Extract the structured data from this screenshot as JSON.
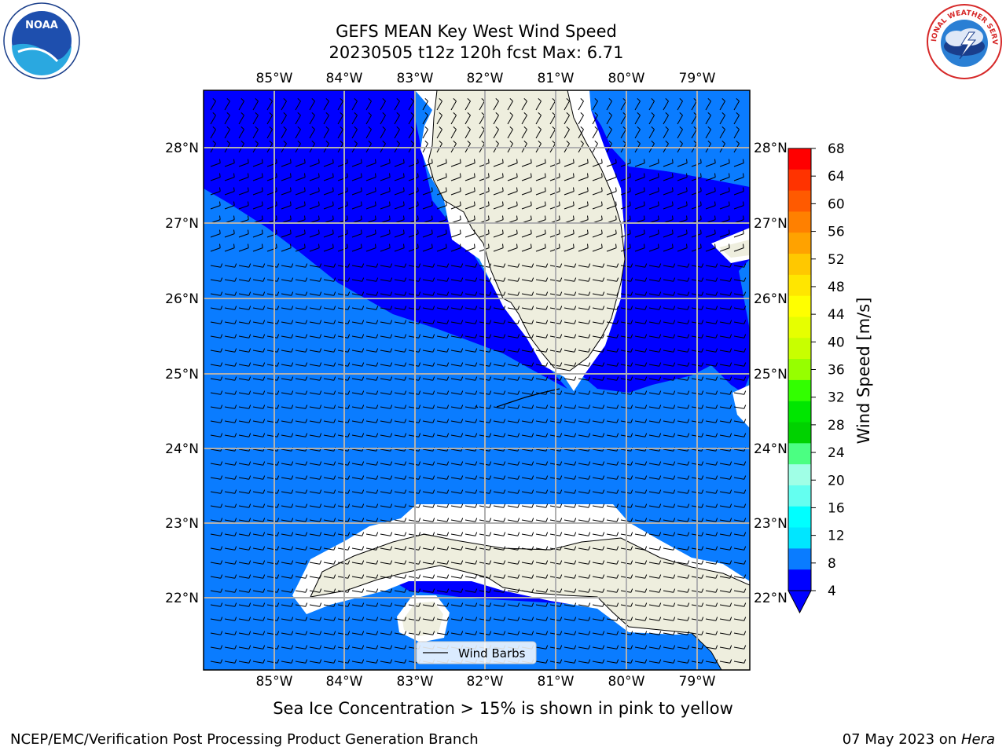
{
  "title": {
    "line1": "GEFS MEAN Key West Wind Speed",
    "line2": "20230505 t12z 120h fcst   Max: 6.71"
  },
  "map": {
    "lon_ticks": [
      "85°W",
      "84°W",
      "83°W",
      "82°W",
      "81°W",
      "80°W",
      "79°W"
    ],
    "lat_ticks": [
      "28°N",
      "27°N",
      "26°N",
      "25°N",
      "24°N",
      "23°N",
      "22°N"
    ],
    "legend_label": "Wind Barbs",
    "colors": {
      "ocean_light": "#0a7cff",
      "ocean_dark": "#0000ff",
      "land": "#eeeede",
      "grid": "#b0b0b0"
    },
    "wind_barb_direction": "westerly (barbs point east)"
  },
  "colorbar": {
    "label": "Wind Speed [m/s]",
    "ticks": [
      "68",
      "64",
      "60",
      "56",
      "52",
      "48",
      "44",
      "40",
      "36",
      "32",
      "28",
      "24",
      "20",
      "16",
      "12",
      "8",
      "4"
    ],
    "colors": [
      "#ff0000",
      "#ff3300",
      "#ff5a00",
      "#ff8000",
      "#ffa200",
      "#ffc800",
      "#ffe600",
      "#ffff00",
      "#e6ff00",
      "#c8ff00",
      "#96ff00",
      "#32ff00",
      "#00e600",
      "#00d200",
      "#4bff82",
      "#a0ffe6",
      "#64fff0",
      "#00ffff",
      "#00e6ff",
      "#0a7cff",
      "#0000ff"
    ]
  },
  "caption": "Sea Ice Concentration > 15% is shown in pink to yellow",
  "footer": {
    "left": "NCEP/EMC/Verification Post Processing Product Generation Branch",
    "date": "07 May 2023 on ",
    "machine": "Hera"
  },
  "logos": {
    "noaa": "NOAA",
    "nws": "NATIONAL WEATHER SERVICE"
  }
}
